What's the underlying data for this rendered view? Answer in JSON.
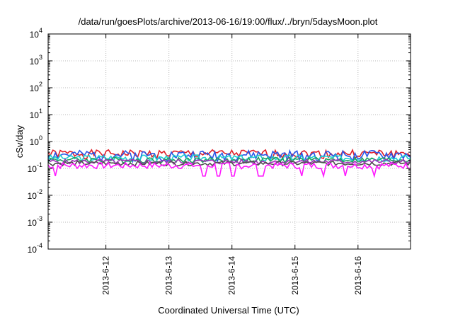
{
  "chart_data": {
    "type": "line",
    "title": "/data/run/goesPlots/archive/2013-06-16/19:00/flux/../bryn/5daysMoon.plot",
    "xlabel": "Coordinated Universal Time (UTC)",
    "ylabel": "cSv/day",
    "y_scale": "log",
    "ylim": [
      0.0001,
      10000
    ],
    "xlim": [
      "2013-06-11 02:00",
      "2013-06-16 20:00"
    ],
    "y_ticks": [
      {
        "base": "10",
        "exp": "-4"
      },
      {
        "base": "10",
        "exp": "-3"
      },
      {
        "base": "10",
        "exp": "-2"
      },
      {
        "base": "10",
        "exp": "-1"
      },
      {
        "base": "10",
        "exp": "0"
      },
      {
        "base": "10",
        "exp": "1"
      },
      {
        "base": "10",
        "exp": "2"
      },
      {
        "base": "10",
        "exp": "3"
      },
      {
        "base": "10",
        "exp": "4"
      }
    ],
    "x_ticks": [
      "2013-6-12",
      "2013-6-13",
      "2013-6-14",
      "2013-6-15",
      "2013-6-16"
    ],
    "grid": true,
    "grid_style": "dotted",
    "legend": "none",
    "series": [
      {
        "color": "#e0202a",
        "base": 0.36,
        "amp": 0.13,
        "dips": false,
        "seed": 1
      },
      {
        "color": "#2a55e8",
        "base": 0.32,
        "amp": 0.14,
        "dips": false,
        "seed": 2
      },
      {
        "color": "#1ccfcf",
        "base": 0.25,
        "amp": 0.07,
        "dips": false,
        "seed": 3
      },
      {
        "color": "#20a060",
        "base": 0.21,
        "amp": 0.05,
        "dips": false,
        "seed": 4
      },
      {
        "color": "#9c2fb4",
        "base": 0.18,
        "amp": 0.04,
        "dips": false,
        "seed": 5
      },
      {
        "color": "#505050",
        "base": 0.155,
        "amp": 0.03,
        "dips": false,
        "seed": 6
      },
      {
        "color": "#ff18ff",
        "base": 0.13,
        "amp": 0.035,
        "dips": true,
        "seed": 7
      }
    ]
  }
}
